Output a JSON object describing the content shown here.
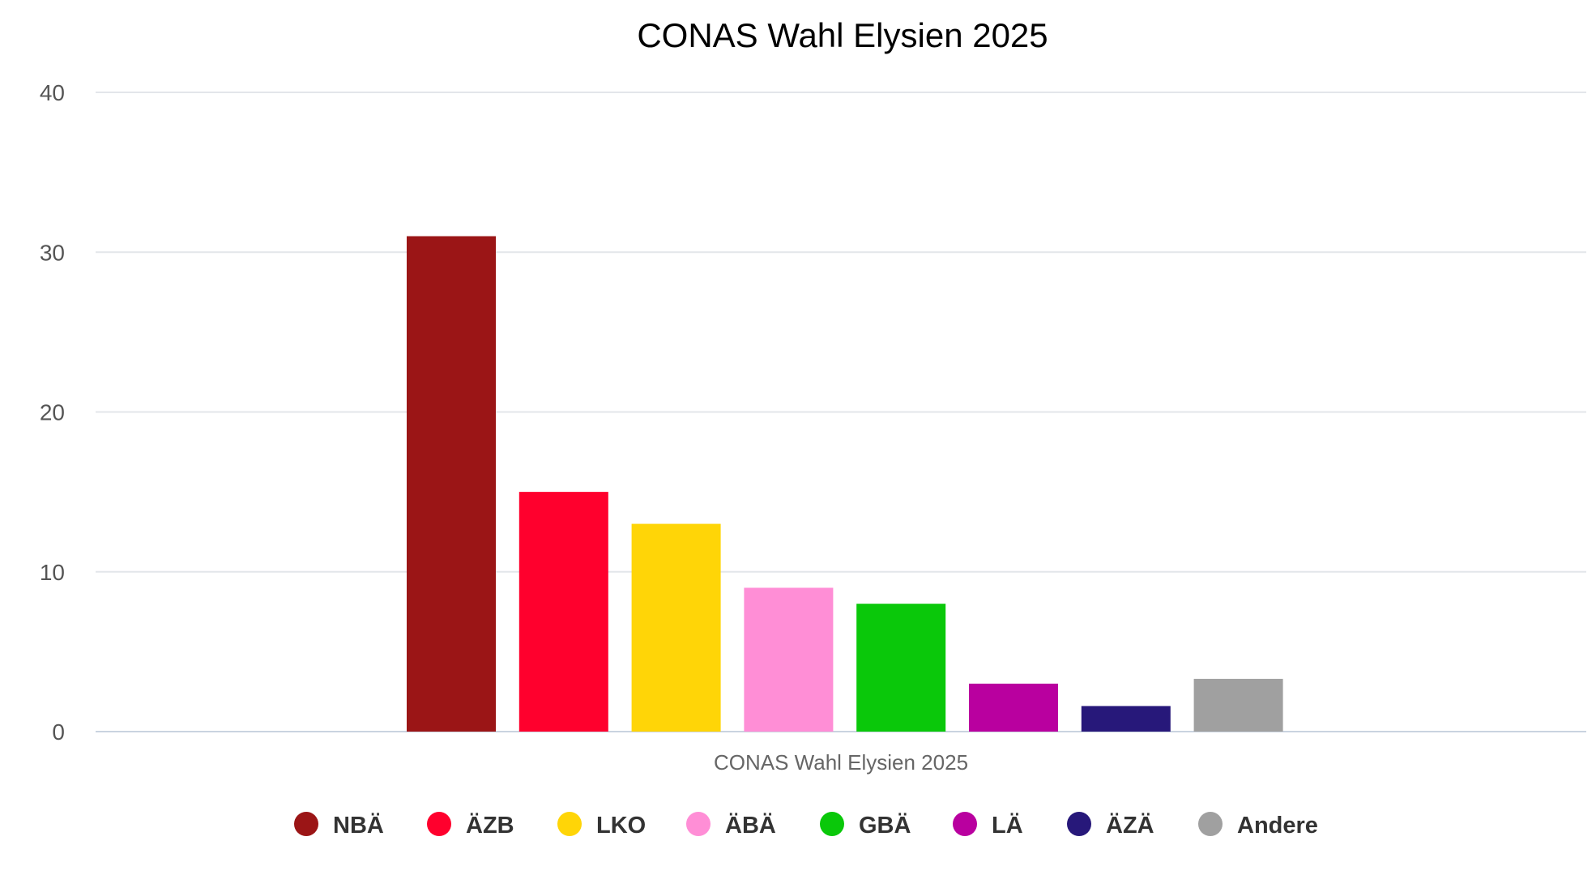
{
  "chart_data": {
    "type": "bar",
    "title": "CONAS Wahl Elysien 2025",
    "categories": [
      "CONAS Wahl Elysien 2025"
    ],
    "series": [
      {
        "name": "NBÄ",
        "values": [
          31
        ],
        "color": "#9b1516"
      },
      {
        "name": "ÄZB",
        "values": [
          15
        ],
        "color": "#ff002d"
      },
      {
        "name": "LKO",
        "values": [
          13
        ],
        "color": "#ffd507"
      },
      {
        "name": "ÄBÄ",
        "values": [
          9
        ],
        "color": "#ff8ed6"
      },
      {
        "name": "GBÄ",
        "values": [
          8
        ],
        "color": "#0ac80a"
      },
      {
        "name": "LÄ",
        "values": [
          3
        ],
        "color": "#b9009f"
      },
      {
        "name": "ÄZÄ",
        "values": [
          1.6
        ],
        "color": "#27187a"
      },
      {
        "name": "Andere",
        "values": [
          3.3
        ],
        "color": "#a0a0a0"
      }
    ],
    "ylim": [
      0,
      40
    ],
    "yticks": [
      "0",
      "10",
      "20",
      "30",
      "40"
    ],
    "xlabel": "",
    "ylabel": "",
    "grid": true,
    "legend_position": "bottom"
  }
}
